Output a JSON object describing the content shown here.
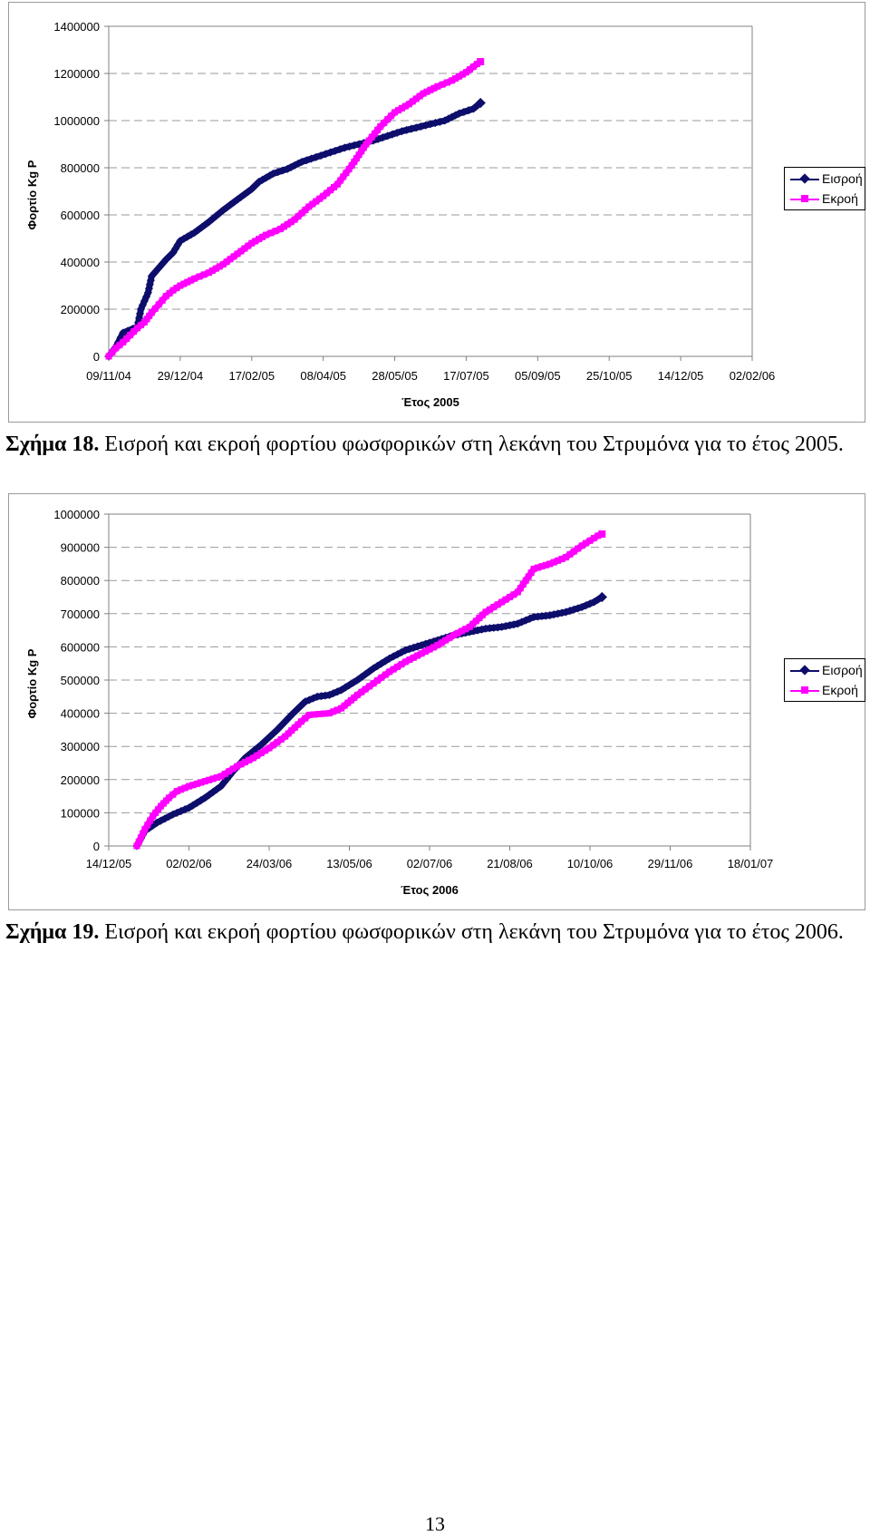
{
  "charts": [
    {
      "id": "chart1",
      "type": "line",
      "ylabel": "Φορτίο  Kg P",
      "xlabel": "Έτος 2005",
      "ylim": [
        0,
        1400000
      ],
      "y_ticks": [
        "0",
        "200000",
        "400000",
        "600000",
        "800000",
        "1000000",
        "1200000",
        "1400000"
      ],
      "x_ticks": [
        "09/11/04",
        "29/12/04",
        "17/02/05",
        "08/04/05",
        "28/05/05",
        "17/07/05",
        "05/09/05",
        "25/10/05",
        "14/12/05",
        "02/02/06"
      ],
      "grid": "horizontal dashed",
      "legend_position": "right",
      "series": [
        {
          "name": "Εισροή",
          "color": "#0d0d6b",
          "marker": "diamond",
          "points": [
            [
              0.0,
              0
            ],
            [
              0.1,
              40000
            ],
            [
              0.2,
              100000
            ],
            [
              0.4,
              125000
            ],
            [
              0.45,
              200000
            ],
            [
              0.55,
              270000
            ],
            [
              0.6,
              340000
            ],
            [
              0.7,
              375000
            ],
            [
              0.8,
              410000
            ],
            [
              0.9,
              440000
            ],
            [
              1.0,
              490000
            ],
            [
              1.2,
              525000
            ],
            [
              1.4,
              570000
            ],
            [
              1.6,
              620000
            ],
            [
              1.8,
              665000
            ],
            [
              2.0,
              710000
            ],
            [
              2.1,
              740000
            ],
            [
              2.3,
              775000
            ],
            [
              2.5,
              795000
            ],
            [
              2.7,
              825000
            ],
            [
              2.9,
              845000
            ],
            [
              3.1,
              865000
            ],
            [
              3.3,
              885000
            ],
            [
              3.5,
              900000
            ],
            [
              3.7,
              915000
            ],
            [
              3.9,
              935000
            ],
            [
              4.1,
              955000
            ],
            [
              4.3,
              970000
            ],
            [
              4.5,
              985000
            ],
            [
              4.7,
              1000000
            ],
            [
              4.9,
              1030000
            ],
            [
              5.1,
              1050000
            ],
            [
              5.2,
              1075000
            ]
          ]
        },
        {
          "name": "Εκροή",
          "color": "#ff00ff",
          "marker": "square",
          "points": [
            [
              0.0,
              0
            ],
            [
              0.1,
              35000
            ],
            [
              0.2,
              60000
            ],
            [
              0.3,
              90000
            ],
            [
              0.4,
              120000
            ],
            [
              0.5,
              145000
            ],
            [
              0.6,
              185000
            ],
            [
              0.7,
              220000
            ],
            [
              0.8,
              255000
            ],
            [
              0.9,
              280000
            ],
            [
              1.0,
              300000
            ],
            [
              1.2,
              330000
            ],
            [
              1.4,
              355000
            ],
            [
              1.6,
              390000
            ],
            [
              1.8,
              435000
            ],
            [
              2.0,
              480000
            ],
            [
              2.2,
              515000
            ],
            [
              2.4,
              540000
            ],
            [
              2.6,
              580000
            ],
            [
              2.8,
              635000
            ],
            [
              3.0,
              680000
            ],
            [
              3.2,
              730000
            ],
            [
              3.4,
              810000
            ],
            [
              3.6,
              900000
            ],
            [
              3.8,
              975000
            ],
            [
              4.0,
              1035000
            ],
            [
              4.2,
              1070000
            ],
            [
              4.4,
              1115000
            ],
            [
              4.6,
              1145000
            ],
            [
              4.8,
              1170000
            ],
            [
              5.0,
              1205000
            ],
            [
              5.15,
              1240000
            ],
            [
              5.2,
              1250000
            ]
          ]
        }
      ]
    },
    {
      "id": "chart2",
      "type": "line",
      "ylabel": "Φορτίο  Kg P",
      "xlabel": "Έτος 2006",
      "ylim": [
        0,
        1000000
      ],
      "y_ticks": [
        "0",
        "100000",
        "200000",
        "300000",
        "400000",
        "500000",
        "600000",
        "700000",
        "800000",
        "900000",
        "1000000"
      ],
      "x_ticks": [
        "14/12/05",
        "02/02/06",
        "24/03/06",
        "13/05/06",
        "02/07/06",
        "21/08/06",
        "10/10/06",
        "29/11/06",
        "18/01/07"
      ],
      "grid": "horizontal dashed",
      "legend_position": "right",
      "series": [
        {
          "name": "Εισροή",
          "color": "#0d0d6b",
          "marker": "diamond",
          "points": [
            [
              0.35,
              0
            ],
            [
              0.45,
              45000
            ],
            [
              0.6,
              70000
            ],
            [
              0.8,
              95000
            ],
            [
              1.0,
              115000
            ],
            [
              1.2,
              145000
            ],
            [
              1.4,
              180000
            ],
            [
              1.55,
              225000
            ],
            [
              1.7,
              265000
            ],
            [
              1.9,
              305000
            ],
            [
              2.1,
              350000
            ],
            [
              2.3,
              400000
            ],
            [
              2.45,
              435000
            ],
            [
              2.6,
              450000
            ],
            [
              2.75,
              455000
            ],
            [
              2.9,
              470000
            ],
            [
              3.1,
              500000
            ],
            [
              3.3,
              535000
            ],
            [
              3.5,
              565000
            ],
            [
              3.7,
              590000
            ],
            [
              3.9,
              605000
            ],
            [
              4.1,
              620000
            ],
            [
              4.3,
              635000
            ],
            [
              4.5,
              645000
            ],
            [
              4.7,
              655000
            ],
            [
              4.9,
              660000
            ],
            [
              5.1,
              670000
            ],
            [
              5.3,
              690000
            ],
            [
              5.5,
              695000
            ],
            [
              5.7,
              705000
            ],
            [
              5.9,
              720000
            ],
            [
              6.05,
              735000
            ],
            [
              6.15,
              750000
            ]
          ]
        },
        {
          "name": "Εκροή",
          "color": "#ff00ff",
          "marker": "square",
          "points": [
            [
              0.35,
              0
            ],
            [
              0.45,
              50000
            ],
            [
              0.55,
              90000
            ],
            [
              0.65,
              120000
            ],
            [
              0.75,
              145000
            ],
            [
              0.85,
              165000
            ],
            [
              1.0,
              180000
            ],
            [
              1.2,
              195000
            ],
            [
              1.4,
              210000
            ],
            [
              1.6,
              240000
            ],
            [
              1.8,
              265000
            ],
            [
              2.0,
              295000
            ],
            [
              2.2,
              330000
            ],
            [
              2.4,
              375000
            ],
            [
              2.5,
              395000
            ],
            [
              2.75,
              400000
            ],
            [
              2.9,
              415000
            ],
            [
              3.1,
              455000
            ],
            [
              3.3,
              490000
            ],
            [
              3.5,
              525000
            ],
            [
              3.7,
              555000
            ],
            [
              3.9,
              580000
            ],
            [
              4.1,
              605000
            ],
            [
              4.3,
              635000
            ],
            [
              4.5,
              660000
            ],
            [
              4.7,
              705000
            ],
            [
              4.9,
              735000
            ],
            [
              5.1,
              765000
            ],
            [
              5.3,
              835000
            ],
            [
              5.5,
              850000
            ],
            [
              5.7,
              870000
            ],
            [
              5.9,
              905000
            ],
            [
              6.1,
              935000
            ],
            [
              6.15,
              940000
            ]
          ]
        }
      ]
    }
  ],
  "captions": [
    {
      "label": "Σχήμα 18.",
      "text": " Εισροή και εκροή φορτίου φωσφορικών στη λεκάνη του Στρυμόνα για το έτος 2005."
    },
    {
      "label": "Σχήμα 19.",
      "text": " Εισροή και εκροή φορτίου φωσφορικών στη λεκάνη του Στρυμόνα για το έτος 2006."
    }
  ],
  "page_number": "13"
}
